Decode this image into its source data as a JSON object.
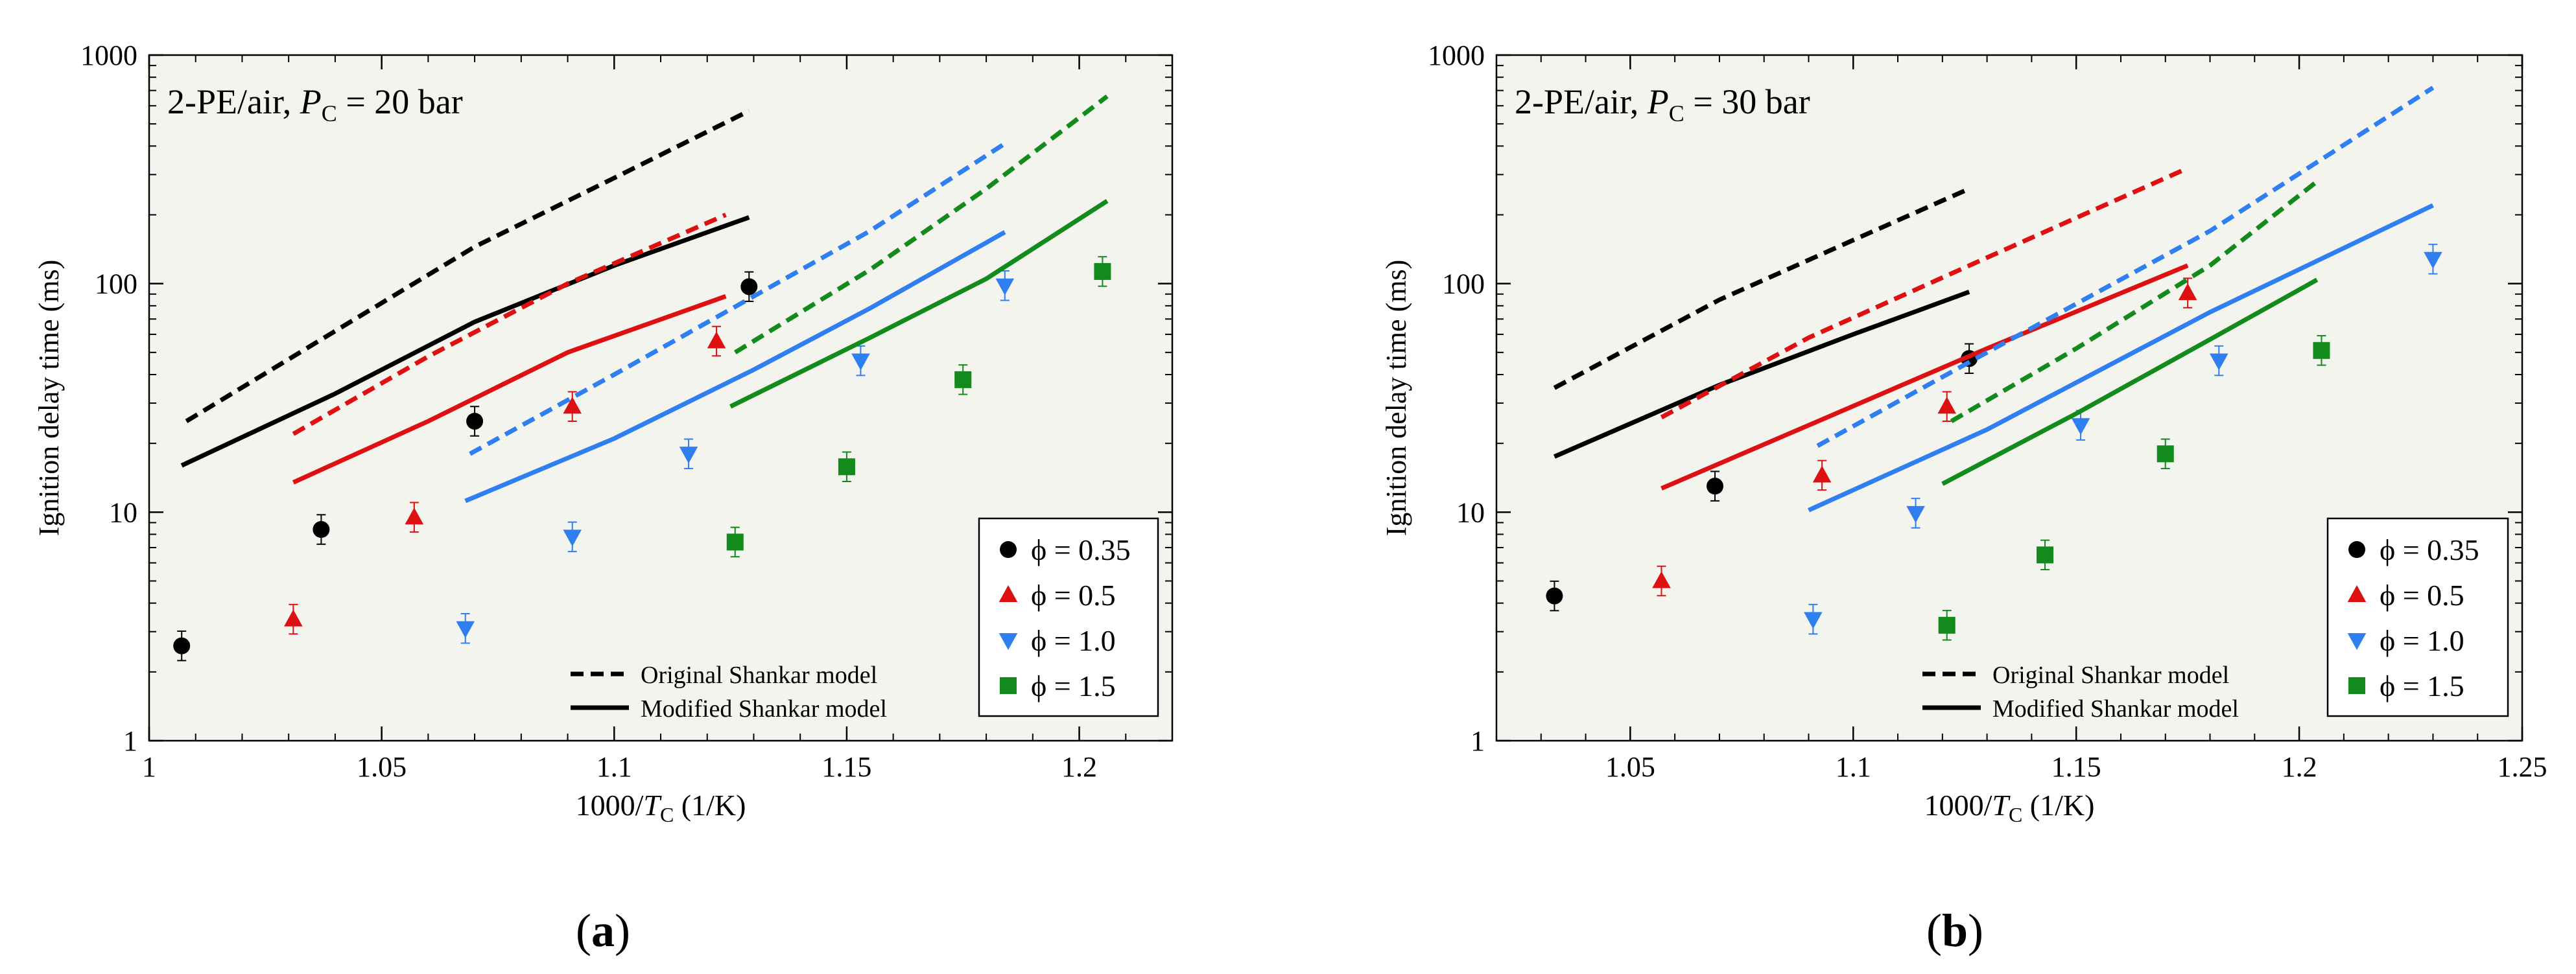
{
  "colors": {
    "phi_035": "#000000",
    "phi_05": "#dd1111",
    "phi_10": "#2f7ff0",
    "phi_15": "#128a1c",
    "plot_bg": "#f4f4ef"
  },
  "chart_data": [
    {
      "type": "scatter",
      "panel_label": "a",
      "annotation": {
        "prefix": "2-PE/air, ",
        "var": "P",
        "sub": "C",
        "suffix": " = 20 bar"
      },
      "ylabel": "Ignition delay time (ms)",
      "xlabel": {
        "prefix": "1000/",
        "var": "T",
        "sub": "C",
        "suffix": " (1/K)"
      },
      "xlim": [
        1.0,
        1.22
      ],
      "ylim": [
        1,
        1000
      ],
      "yscale": "log",
      "xticks": [
        "1",
        "1.05",
        "1.1",
        "1.15",
        "1.2"
      ],
      "yticks": [
        "1",
        "10",
        "100",
        "1000"
      ],
      "legend_phi": [
        "ϕ = 0.35",
        "ϕ = 0.5",
        "ϕ = 1.0",
        "ϕ = 1.5"
      ],
      "legend_models": [
        "Original Shankar model",
        "Modified Shankar model"
      ],
      "series": [
        {
          "name": "ϕ = 0.35",
          "marker": "circle",
          "color": "#000000",
          "points": [
            [
              1.007,
              2.6
            ],
            [
              1.037,
              8.4
            ],
            [
              1.07,
              25
            ],
            [
              1.129,
              97
            ]
          ],
          "original": [
            [
              1.008,
              25
            ],
            [
              1.04,
              62
            ],
            [
              1.07,
              145
            ],
            [
              1.1,
              290
            ],
            [
              1.129,
              570
            ]
          ],
          "modified": [
            [
              1.007,
              16
            ],
            [
              1.04,
              33
            ],
            [
              1.07,
              68
            ],
            [
              1.1,
              120
            ],
            [
              1.129,
              195
            ]
          ]
        },
        {
          "name": "ϕ = 0.5",
          "marker": "triangle-up",
          "color": "#dd1111",
          "points": [
            [
              1.031,
              3.4
            ],
            [
              1.057,
              9.5
            ],
            [
              1.091,
              29
            ],
            [
              1.122,
              56
            ]
          ],
          "original": [
            [
              1.031,
              22
            ],
            [
              1.06,
              48
            ],
            [
              1.09,
              100
            ],
            [
              1.124,
              200
            ]
          ],
          "modified": [
            [
              1.031,
              13.5
            ],
            [
              1.06,
              25
            ],
            [
              1.09,
              50
            ],
            [
              1.124,
              88
            ]
          ]
        },
        {
          "name": "ϕ = 1.0",
          "marker": "triangle-down",
          "color": "#2f7ff0",
          "points": [
            [
              1.068,
              3.1
            ],
            [
              1.091,
              7.8
            ],
            [
              1.116,
              18
            ],
            [
              1.153,
              46
            ],
            [
              1.184,
              98
            ]
          ],
          "original": [
            [
              1.069,
              18
            ],
            [
              1.1,
              40
            ],
            [
              1.13,
              88
            ],
            [
              1.155,
              170
            ],
            [
              1.184,
              410
            ]
          ],
          "modified": [
            [
              1.068,
              11.2
            ],
            [
              1.1,
              21
            ],
            [
              1.13,
              42
            ],
            [
              1.155,
              78
            ],
            [
              1.184,
              168
            ]
          ]
        },
        {
          "name": "ϕ = 1.5",
          "marker": "square",
          "color": "#128a1c",
          "points": [
            [
              1.126,
              7.4
            ],
            [
              1.15,
              15.8
            ],
            [
              1.175,
              38
            ],
            [
              1.205,
              113
            ]
          ],
          "original": [
            [
              1.126,
              50
            ],
            [
              1.155,
              115
            ],
            [
              1.18,
              260
            ],
            [
              1.206,
              660
            ]
          ],
          "modified": [
            [
              1.125,
              29
            ],
            [
              1.155,
              58
            ],
            [
              1.18,
              105
            ],
            [
              1.206,
              230
            ]
          ]
        }
      ]
    },
    {
      "type": "scatter",
      "panel_label": "b",
      "annotation": {
        "prefix": "2-PE/air, ",
        "var": "P",
        "sub": "C",
        "suffix": " = 30 bar"
      },
      "ylabel": "Ignition delay time (ms)",
      "xlabel": {
        "prefix": "1000/",
        "var": "T",
        "sub": "C",
        "suffix": " (1/K)"
      },
      "xlim": [
        1.02,
        1.25
      ],
      "ylim": [
        1,
        1000
      ],
      "yscale": "log",
      "xticks": [
        "1.05",
        "1.1",
        "1.15",
        "1.2",
        "1.25"
      ],
      "yticks": [
        "1",
        "10",
        "100",
        "1000"
      ],
      "legend_phi": [
        "ϕ = 0.35",
        "ϕ = 0.5",
        "ϕ = 1.0",
        "ϕ = 1.5"
      ],
      "legend_models": [
        "Original Shankar model",
        "Modified Shankar model"
      ],
      "series": [
        {
          "name": "ϕ = 0.35",
          "marker": "circle",
          "color": "#000000",
          "points": [
            [
              1.033,
              4.3
            ],
            [
              1.069,
              13
            ],
            [
              1.126,
              47
            ]
          ],
          "original": [
            [
              1.033,
              35
            ],
            [
              1.07,
              85
            ],
            [
              1.1,
              155
            ],
            [
              1.126,
              260
            ]
          ],
          "modified": [
            [
              1.033,
              17.5
            ],
            [
              1.07,
              36
            ],
            [
              1.1,
              60
            ],
            [
              1.126,
              92
            ]
          ]
        },
        {
          "name": "ϕ = 0.5",
          "marker": "triangle-up",
          "color": "#dd1111",
          "points": [
            [
              1.057,
              5
            ],
            [
              1.093,
              14.5
            ],
            [
              1.121,
              29
            ],
            [
              1.175,
              91
            ]
          ],
          "original": [
            [
              1.057,
              26
            ],
            [
              1.09,
              58
            ],
            [
              1.13,
              130
            ],
            [
              1.175,
              320
            ]
          ],
          "modified": [
            [
              1.057,
              12.7
            ],
            [
              1.09,
              24
            ],
            [
              1.13,
              52
            ],
            [
              1.175,
              120
            ]
          ]
        },
        {
          "name": "ϕ = 1.0",
          "marker": "triangle-down",
          "color": "#2f7ff0",
          "points": [
            [
              1.091,
              3.4
            ],
            [
              1.114,
              9.9
            ],
            [
              1.151,
              24
            ],
            [
              1.182,
              46
            ],
            [
              1.23,
              128
            ]
          ],
          "original": [
            [
              1.092,
              19.5
            ],
            [
              1.13,
              50
            ],
            [
              1.18,
              170
            ],
            [
              1.23,
              720
            ]
          ],
          "modified": [
            [
              1.09,
              10.2
            ],
            [
              1.13,
              23
            ],
            [
              1.18,
              75
            ],
            [
              1.23,
              220
            ]
          ]
        },
        {
          "name": "ϕ = 1.5",
          "marker": "square",
          "color": "#128a1c",
          "points": [
            [
              1.121,
              3.2
            ],
            [
              1.143,
              6.5
            ],
            [
              1.17,
              18
            ],
            [
              1.205,
              51
            ]
          ],
          "original": [
            [
              1.122,
              25
            ],
            [
              1.15,
              52
            ],
            [
              1.18,
              120
            ],
            [
              1.204,
              280
            ]
          ],
          "modified": [
            [
              1.12,
              13.3
            ],
            [
              1.15,
              27
            ],
            [
              1.18,
              57
            ],
            [
              1.204,
              104
            ]
          ]
        }
      ]
    }
  ]
}
